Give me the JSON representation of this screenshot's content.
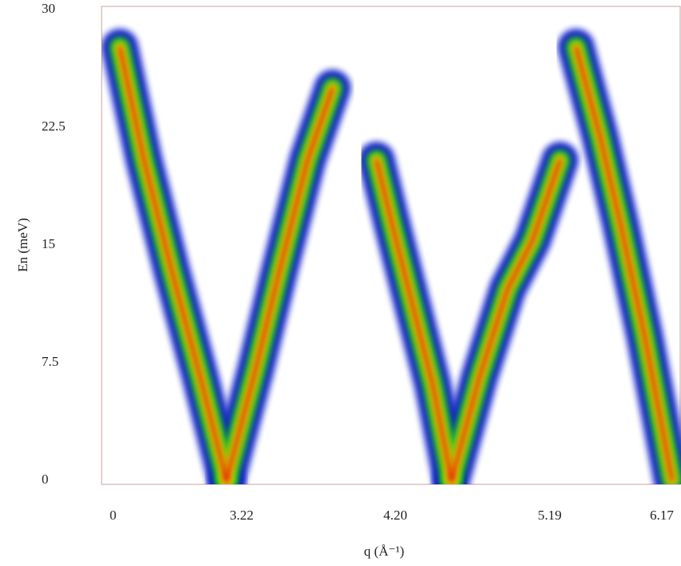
{
  "chart_data": {
    "type": "heatmap",
    "xlabel": "q (Å⁻¹)",
    "ylabel": "En (meV)",
    "xticks": [
      0,
      3.22,
      {
        "value": 4.2,
        "label": "4.20"
      },
      5.19,
      6.17
    ],
    "ylim": [
      -0.25,
      30.2
    ],
    "yticks": [
      0,
      7.5,
      15,
      22.5,
      30
    ],
    "colormap": [
      "#0a1ec8",
      "#18c818",
      "#f0f000",
      "#e01800"
    ],
    "branches": [
      {
        "x": [
          2.85,
          2.21,
          1.52,
          0.84,
          0.25
        ],
        "y": [
          0,
          6.6,
          13.3,
          20.4,
          27.6
        ]
      },
      {
        "x": [
          2.85,
          3.31,
          3.46,
          3.64,
          3.8
        ],
        "y": [
          0,
          7.1,
          13.3,
          20.4,
          25.0
        ]
      },
      {
        "x": [
          4.56,
          4.44,
          4.31,
          4.18,
          4.08
        ],
        "y": [
          0,
          6.1,
          11.2,
          16.3,
          20.4
        ]
      },
      {
        "x": [
          4.56,
          4.74,
          4.92,
          5.08,
          5.28
        ],
        "y": [
          0,
          6.6,
          12.2,
          15.3,
          20.4
        ]
      },
      {
        "x": [
          6.26,
          6.02,
          5.81,
          5.63,
          5.42
        ],
        "y": [
          0,
          9.2,
          16.3,
          21.9,
          27.6
        ]
      }
    ]
  }
}
